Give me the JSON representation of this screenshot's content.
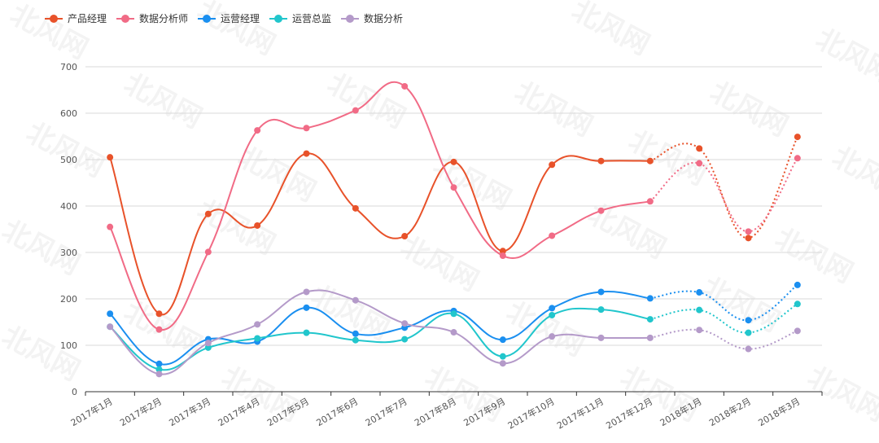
{
  "watermark_text": "北风网",
  "chart_data": {
    "type": "line",
    "title": "",
    "xlabel": "",
    "ylabel": "",
    "legend_position": "top-left",
    "grid": true,
    "smooth": true,
    "ylim": [
      0,
      700
    ],
    "yticks": [
      0,
      100,
      200,
      300,
      400,
      500,
      600,
      700
    ],
    "categories": [
      "2017年1月",
      "2017年2月",
      "2017年3月",
      "2017年4月",
      "2017年5月",
      "2017年6月",
      "2017年7月",
      "2017年8月",
      "2017年9月",
      "2017年10月",
      "2017年11月",
      "2017年12月",
      "2018年1月",
      "2018年2月",
      "2018年3月"
    ],
    "solid_until_index": 11,
    "series": [
      {
        "name": "产品经理",
        "color": "#e8522a",
        "values": [
          505,
          168,
          383,
          358,
          513,
          395,
          335,
          495,
          303,
          489,
          497,
          497,
          524,
          331,
          549
        ]
      },
      {
        "name": "数据分析师",
        "color": "#f16b86",
        "values": [
          355,
          134,
          301,
          563,
          568,
          606,
          658,
          440,
          293,
          336,
          390,
          410,
          492,
          345,
          503
        ]
      },
      {
        "name": "运营经理",
        "color": "#1a8ff0",
        "values": [
          168,
          60,
          113,
          108,
          181,
          125,
          138,
          174,
          112,
          180,
          215,
          201,
          214,
          154,
          230
        ]
      },
      {
        "name": "运营总监",
        "color": "#21c6cc",
        "values": [
          140,
          48,
          95,
          115,
          127,
          111,
          113,
          168,
          76,
          165,
          177,
          156,
          176,
          127,
          189
        ]
      },
      {
        "name": "数据分析",
        "color": "#b49ac9",
        "values": [
          140,
          38,
          105,
          145,
          215,
          197,
          147,
          128,
          61,
          119,
          116,
          116,
          133,
          92,
          131
        ]
      }
    ]
  }
}
